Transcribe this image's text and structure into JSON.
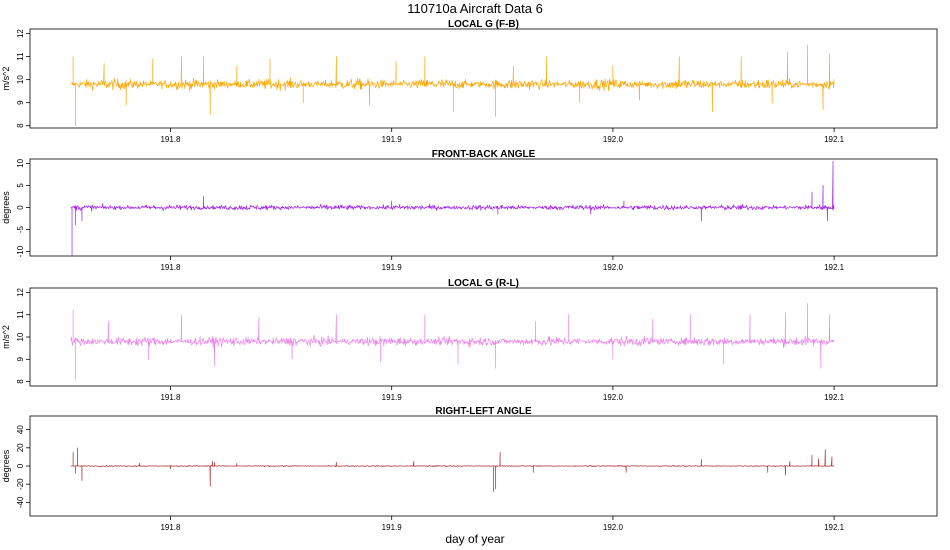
{
  "figure": {
    "title": "110710a    Aircraft Data 6",
    "xlabel": "day of year"
  },
  "chart_data": [
    {
      "type": "line",
      "title": "LOCAL G (F-B)",
      "ylabel": "m/s^2",
      "color": "#ffa500",
      "xlim": [
        191.7365,
        192.1465
      ],
      "ylim": [
        7.9,
        12.2
      ],
      "yticks": [
        8,
        9,
        10,
        11,
        12
      ],
      "xticks": [
        191.8,
        191.9,
        192.0,
        192.1
      ],
      "xtick_labels": [
        "191.8",
        "191.9",
        "192.0",
        "192.1"
      ],
      "x_range": [
        191.755,
        192.1
      ],
      "baseline": 9.8,
      "noise": 0.22,
      "spikes": [
        {
          "x": 191.756,
          "y": 11.0
        },
        {
          "x": 191.757,
          "y": 8.0
        },
        {
          "x": 191.77,
          "y": 10.7
        },
        {
          "x": 191.78,
          "y": 8.9
        },
        {
          "x": 191.792,
          "y": 10.9
        },
        {
          "x": 191.805,
          "y": 11.0
        },
        {
          "x": 191.815,
          "y": 11.0
        },
        {
          "x": 191.818,
          "y": 8.5
        },
        {
          "x": 191.83,
          "y": 10.6
        },
        {
          "x": 191.845,
          "y": 10.9
        },
        {
          "x": 191.86,
          "y": 9.0
        },
        {
          "x": 191.875,
          "y": 11.0
        },
        {
          "x": 191.89,
          "y": 8.9
        },
        {
          "x": 191.902,
          "y": 10.8
        },
        {
          "x": 191.915,
          "y": 11.0
        },
        {
          "x": 191.928,
          "y": 8.6
        },
        {
          "x": 191.947,
          "y": 8.4
        },
        {
          "x": 191.955,
          "y": 10.6
        },
        {
          "x": 191.97,
          "y": 11.0
        },
        {
          "x": 191.985,
          "y": 9.0
        },
        {
          "x": 192.0,
          "y": 10.6
        },
        {
          "x": 192.012,
          "y": 9.1
        },
        {
          "x": 192.03,
          "y": 11.0
        },
        {
          "x": 192.045,
          "y": 8.6
        },
        {
          "x": 192.058,
          "y": 11.0
        },
        {
          "x": 192.072,
          "y": 9.0
        },
        {
          "x": 192.079,
          "y": 11.2
        },
        {
          "x": 192.088,
          "y": 11.5
        },
        {
          "x": 192.095,
          "y": 8.7
        },
        {
          "x": 192.098,
          "y": 11.1
        }
      ]
    },
    {
      "type": "line",
      "title": "FRONT-BACK ANGLE",
      "ylabel": "degrees",
      "color": "#a020f0",
      "xlim": [
        191.7365,
        192.1465
      ],
      "ylim": [
        -11,
        11
      ],
      "yticks": [
        -10,
        -5,
        0,
        5,
        10
      ],
      "xticks": [
        191.8,
        191.9,
        192.0,
        192.1
      ],
      "xtick_labels": [
        "191.8",
        "191.9",
        "192.0",
        "192.1"
      ],
      "x_range": [
        191.755,
        192.1
      ],
      "baseline": 0,
      "noise": 0.6,
      "spikes": [
        {
          "x": 191.7555,
          "y": -11.0
        },
        {
          "x": 191.757,
          "y": -4.0
        },
        {
          "x": 191.76,
          "y": -3.0
        },
        {
          "x": 191.815,
          "y": 2.5
        },
        {
          "x": 191.9,
          "y": 1.5
        },
        {
          "x": 191.948,
          "y": -1.5
        },
        {
          "x": 191.99,
          "y": -1.5
        },
        {
          "x": 192.005,
          "y": 1.5
        },
        {
          "x": 192.04,
          "y": -3.0
        },
        {
          "x": 192.09,
          "y": 3.5
        },
        {
          "x": 192.095,
          "y": 5.0
        },
        {
          "x": 192.097,
          "y": -3.0
        },
        {
          "x": 192.0995,
          "y": 10.5
        }
      ]
    },
    {
      "type": "line",
      "title": "LOCAL G (R-L)",
      "ylabel": "m/s^2",
      "color": "#ee82ee",
      "xlim": [
        191.7365,
        192.1465
      ],
      "ylim": [
        7.8,
        12.2
      ],
      "yticks": [
        8,
        9,
        10,
        11,
        12
      ],
      "xticks": [
        191.8,
        191.9,
        192.0,
        192.1
      ],
      "xtick_labels": [
        "191.8",
        "191.9",
        "192.0",
        "192.1"
      ],
      "x_range": [
        191.755,
        192.1
      ],
      "baseline": 9.8,
      "noise": 0.2,
      "spikes": [
        {
          "x": 191.756,
          "y": 11.2
        },
        {
          "x": 191.757,
          "y": 8.1
        },
        {
          "x": 191.772,
          "y": 10.7
        },
        {
          "x": 191.79,
          "y": 9.0
        },
        {
          "x": 191.805,
          "y": 11.0
        },
        {
          "x": 191.82,
          "y": 8.7
        },
        {
          "x": 191.84,
          "y": 10.9
        },
        {
          "x": 191.855,
          "y": 9.0
        },
        {
          "x": 191.875,
          "y": 11.0
        },
        {
          "x": 191.895,
          "y": 8.9
        },
        {
          "x": 191.915,
          "y": 11.0
        },
        {
          "x": 191.93,
          "y": 8.8
        },
        {
          "x": 191.947,
          "y": 8.6
        },
        {
          "x": 191.965,
          "y": 10.7
        },
        {
          "x": 191.98,
          "y": 11.0
        },
        {
          "x": 192.0,
          "y": 9.0
        },
        {
          "x": 192.018,
          "y": 10.8
        },
        {
          "x": 192.035,
          "y": 11.0
        },
        {
          "x": 192.05,
          "y": 8.8
        },
        {
          "x": 192.062,
          "y": 11.0
        },
        {
          "x": 192.078,
          "y": 11.1
        },
        {
          "x": 192.088,
          "y": 11.5
        },
        {
          "x": 192.094,
          "y": 8.6
        },
        {
          "x": 192.098,
          "y": 11.0
        }
      ]
    },
    {
      "type": "line",
      "title": "RIGHT-LEFT ANGLE",
      "ylabel": "degrees",
      "color": "#a52a2a",
      "xlim": [
        191.7365,
        192.1465
      ],
      "ylim": [
        -55,
        55
      ],
      "yticks": [
        -40,
        -20,
        0,
        20,
        40
      ],
      "xticks": [
        191.8,
        191.9,
        192.0,
        192.1
      ],
      "xtick_labels": [
        "191.8",
        "191.9",
        "192.0",
        "192.1"
      ],
      "x_range": [
        191.755,
        192.1
      ],
      "baseline": 0,
      "noise": 0.5,
      "spikes": [
        {
          "x": 191.756,
          "y": 15
        },
        {
          "x": 191.757,
          "y": -8
        },
        {
          "x": 191.758,
          "y": 20
        },
        {
          "x": 191.76,
          "y": -16
        },
        {
          "x": 191.786,
          "y": 3
        },
        {
          "x": 191.8,
          "y": -3
        },
        {
          "x": 191.818,
          "y": -22
        },
        {
          "x": 191.819,
          "y": 5
        },
        {
          "x": 191.82,
          "y": 4
        },
        {
          "x": 191.83,
          "y": 3
        },
        {
          "x": 191.875,
          "y": 4
        },
        {
          "x": 191.91,
          "y": 5
        },
        {
          "x": 191.946,
          "y": -28
        },
        {
          "x": 191.947,
          "y": -25
        },
        {
          "x": 191.949,
          "y": 15
        },
        {
          "x": 191.964,
          "y": -7
        },
        {
          "x": 192.006,
          "y": -7
        },
        {
          "x": 192.04,
          "y": 7
        },
        {
          "x": 192.07,
          "y": -7
        },
        {
          "x": 192.078,
          "y": -10
        },
        {
          "x": 192.08,
          "y": 5
        },
        {
          "x": 192.09,
          "y": 12
        },
        {
          "x": 192.093,
          "y": 8
        },
        {
          "x": 192.096,
          "y": 18
        },
        {
          "x": 192.099,
          "y": 10
        }
      ]
    }
  ]
}
